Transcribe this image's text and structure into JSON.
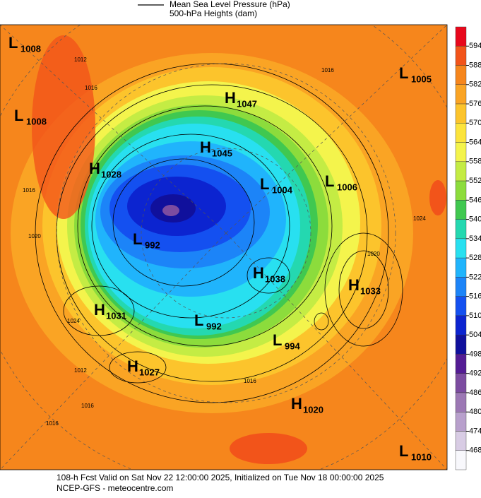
{
  "header": {
    "legend_contour": "Mean Sea Level Pressure (hPa)",
    "legend_fill": "500-hPa Heights (dam)"
  },
  "footer": {
    "line1": "108-h Fcst Valid on Sat Nov 22 12:00:00 2025, Initialized on Tue Nov 18 00:00:00 2025",
    "line2": "NCEP-GFS  - meteocentre.com"
  },
  "colorbar": {
    "ticks": [
      594,
      588,
      582,
      576,
      570,
      564,
      558,
      552,
      546,
      540,
      534,
      528,
      522,
      516,
      510,
      504,
      498,
      492,
      486,
      480,
      474,
      468
    ],
    "colors": [
      "#e8081c",
      "#f2541a",
      "#f6861c",
      "#faa424",
      "#fcc42c",
      "#fce43c",
      "#f4f44c",
      "#c4ec44",
      "#8cdc3c",
      "#40c850",
      "#24d8b0",
      "#28e0f0",
      "#20b4fc",
      "#1c84f8",
      "#1450f0",
      "#0c24d0",
      "#10109c",
      "#541c94",
      "#7c4ca0",
      "#9c78b4",
      "#b8a0cc",
      "#d8cce4",
      "#f8f8fc"
    ]
  },
  "pressure_centers": [
    {
      "type": "L",
      "value": "1008"
    },
    {
      "type": "L",
      "value": "1008"
    },
    {
      "type": "H",
      "value": "1028"
    },
    {
      "type": "L",
      "value": "992"
    },
    {
      "type": "H",
      "value": "1031"
    },
    {
      "type": "H",
      "value": "1027"
    },
    {
      "type": "H",
      "value": "1047"
    },
    {
      "type": "H",
      "value": "1045"
    },
    {
      "type": "L",
      "value": "1004"
    },
    {
      "type": "L",
      "value": "1006"
    },
    {
      "type": "H",
      "value": "1038"
    },
    {
      "type": "H",
      "value": "1033"
    },
    {
      "type": "L",
      "value": "992"
    },
    {
      "type": "L",
      "value": "994"
    },
    {
      "type": "H",
      "value": "1020"
    },
    {
      "type": "L",
      "value": "1005"
    },
    {
      "type": "L",
      "value": "1010"
    }
  ],
  "contour_labels": [
    "1012",
    "1016",
    "1016",
    "1020",
    "1024",
    "1016",
    "1016",
    "1012",
    "1016",
    "1020",
    "1016",
    "1024"
  ]
}
